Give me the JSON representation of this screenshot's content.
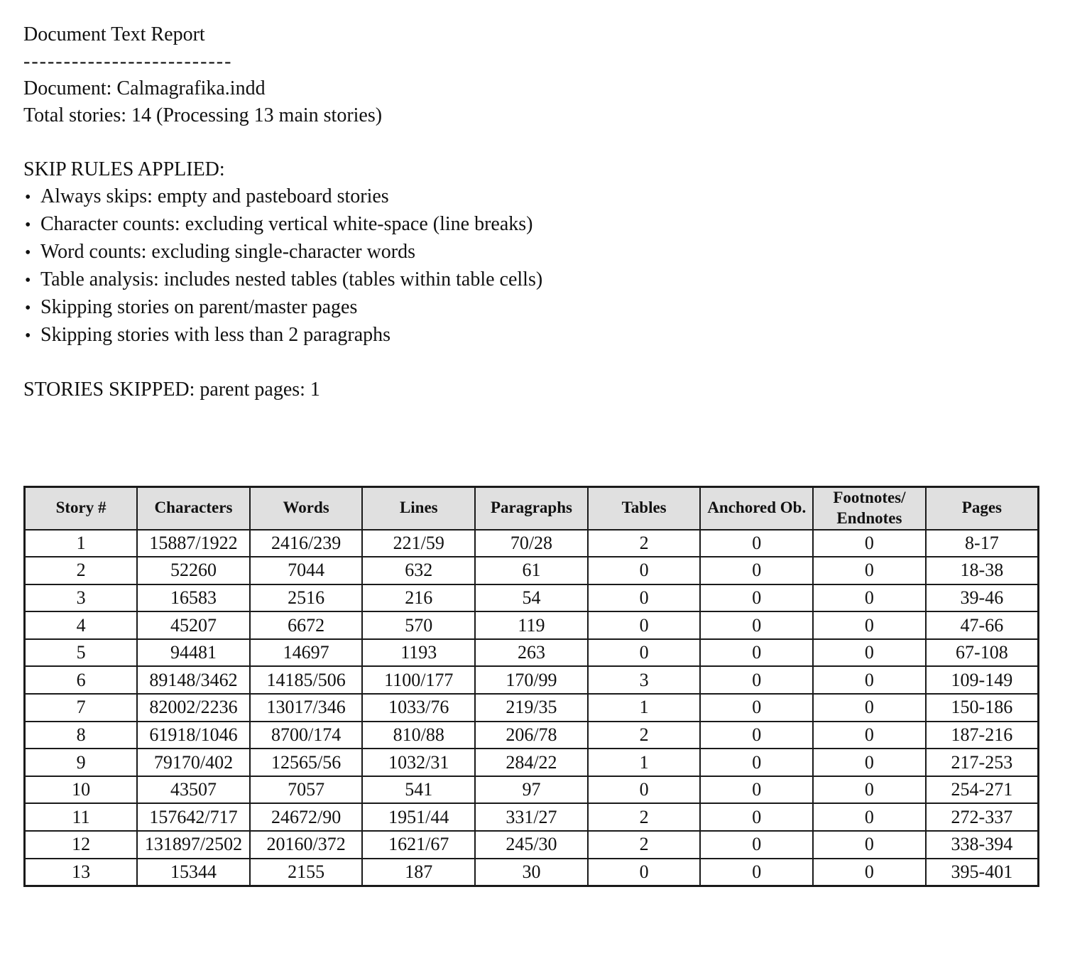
{
  "report": {
    "title": "Document Text Report",
    "divider": "--------------------------",
    "document_line": "Document: Calmagrafika.indd",
    "total_stories_line": "Total stories: 14 (Processing 13 main stories)",
    "skip_rules_heading": "SKIP RULES APPLIED:",
    "skip_rules": [
      "Always skips: empty and pasteboard stories",
      "Character counts: excluding vertical white-space (line breaks)",
      "Word counts: excluding single-character words",
      "Table analysis: includes nested tables (tables within table cells)",
      "Skipping stories on parent/master pages",
      "Skipping stories with less than 2 paragraphs"
    ],
    "stories_skipped_line": "STORIES SKIPPED: parent pages: 1",
    "bullet_glyph": "•"
  },
  "table": {
    "headers": [
      "Story #",
      "Characters",
      "Words",
      "Lines",
      "Paragraphs",
      "Tables",
      "Anchored Ob.",
      "Footnotes/\nEndnotes",
      "Pages"
    ],
    "rows": [
      [
        "1",
        "15887/1922",
        "2416/239",
        "221/59",
        "70/28",
        "2",
        "0",
        "0",
        "8-17"
      ],
      [
        "2",
        "52260",
        "7044",
        "632",
        "61",
        "0",
        "0",
        "0",
        "18-38"
      ],
      [
        "3",
        "16583",
        "2516",
        "216",
        "54",
        "0",
        "0",
        "0",
        "39-46"
      ],
      [
        "4",
        "45207",
        "6672",
        "570",
        "119",
        "0",
        "0",
        "0",
        "47-66"
      ],
      [
        "5",
        "94481",
        "14697",
        "1193",
        "263",
        "0",
        "0",
        "0",
        "67-108"
      ],
      [
        "6",
        "89148/3462",
        "14185/506",
        "1100/177",
        "170/99",
        "3",
        "0",
        "0",
        "109-149"
      ],
      [
        "7",
        "82002/2236",
        "13017/346",
        "1033/76",
        "219/35",
        "1",
        "0",
        "0",
        "150-186"
      ],
      [
        "8",
        "61918/1046",
        "8700/174",
        "810/88",
        "206/78",
        "2",
        "0",
        "0",
        "187-216"
      ],
      [
        "9",
        "79170/402",
        "12565/56",
        "1032/31",
        "284/22",
        "1",
        "0",
        "0",
        "217-253"
      ],
      [
        "10",
        "43507",
        "7057",
        "541",
        "97",
        "0",
        "0",
        "0",
        "254-271"
      ],
      [
        "11",
        "157642/717",
        "24672/90",
        "1951/44",
        "331/27",
        "2",
        "0",
        "0",
        "272-337"
      ],
      [
        "12",
        "131897/2502",
        "20160/372",
        "1621/67",
        "245/30",
        "2",
        "0",
        "0",
        "338-394"
      ],
      [
        "13",
        "15344",
        "2155",
        "187",
        "30",
        "0",
        "0",
        "0",
        "395-401"
      ]
    ]
  },
  "colors": {
    "header_bg": "#e0e0e0",
    "border": "#1a1a1a",
    "text": "#111111",
    "background": "#ffffff"
  }
}
